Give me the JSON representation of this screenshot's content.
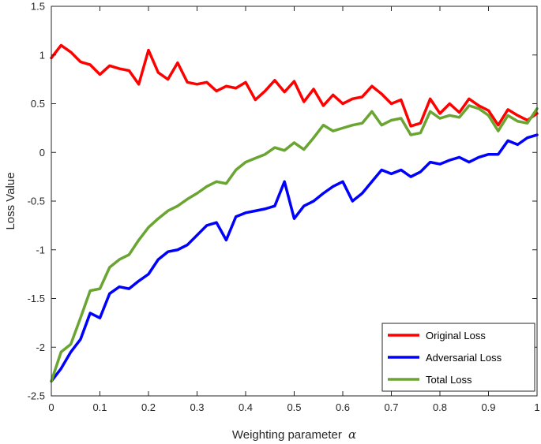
{
  "chart_data": {
    "type": "line",
    "title": "",
    "xlabel": "Weighting parameter",
    "xlabel_symbol": "α",
    "ylabel": "Loss Value",
    "xlim": [
      0,
      1
    ],
    "ylim": [
      -2.5,
      1.5
    ],
    "x_ticks": [
      0,
      0.1,
      0.2,
      0.3,
      0.4,
      0.5,
      0.6,
      0.7,
      0.8,
      0.9,
      1
    ],
    "x_tick_labels": [
      "0",
      "0.1",
      "0.2",
      "0.3",
      "0.4",
      "0.5",
      "0.6",
      "0.7",
      "0.8",
      "0.9",
      "1"
    ],
    "y_ticks": [
      -2.5,
      -2,
      -1.5,
      -1,
      -0.5,
      0,
      0.5,
      1,
      1.5
    ],
    "y_tick_labels": [
      "-2.5",
      "-2",
      "-1.5",
      "-1",
      "-0.5",
      "0",
      "0.5",
      "1",
      "1.5"
    ],
    "grid": false,
    "legend_position": "bottom-right",
    "x": [
      0,
      0.02,
      0.04,
      0.06,
      0.08,
      0.1,
      0.12,
      0.14,
      0.16,
      0.18,
      0.2,
      0.22,
      0.24,
      0.26,
      0.28,
      0.3,
      0.32,
      0.34,
      0.36,
      0.38,
      0.4,
      0.42,
      0.44,
      0.46,
      0.48,
      0.5,
      0.52,
      0.54,
      0.56,
      0.58,
      0.6,
      0.62,
      0.64,
      0.66,
      0.68,
      0.7,
      0.72,
      0.74,
      0.76,
      0.78,
      0.8,
      0.82,
      0.84,
      0.86,
      0.88,
      0.9,
      0.92,
      0.94,
      0.96,
      0.98,
      1.0
    ],
    "series": [
      {
        "name": "Original Loss",
        "color": "#ff0000",
        "values": [
          0.97,
          1.1,
          1.03,
          0.93,
          0.9,
          0.8,
          0.89,
          0.86,
          0.84,
          0.7,
          1.05,
          0.82,
          0.75,
          0.92,
          0.72,
          0.7,
          0.72,
          0.63,
          0.68,
          0.66,
          0.72,
          0.54,
          0.63,
          0.74,
          0.62,
          0.73,
          0.52,
          0.65,
          0.48,
          0.59,
          0.5,
          0.55,
          0.57,
          0.68,
          0.6,
          0.5,
          0.54,
          0.27,
          0.3,
          0.55,
          0.4,
          0.5,
          0.41,
          0.55,
          0.48,
          0.43,
          0.28,
          0.44,
          0.38,
          0.33,
          0.4
        ]
      },
      {
        "name": "Adversarial Loss",
        "color": "#0000ff",
        "values": [
          -2.35,
          -2.22,
          -2.05,
          -1.92,
          -1.65,
          -1.7,
          -1.45,
          -1.38,
          -1.4,
          -1.32,
          -1.25,
          -1.1,
          -1.02,
          -1.0,
          -0.95,
          -0.85,
          -0.75,
          -0.72,
          -0.9,
          -0.66,
          -0.62,
          -0.6,
          -0.58,
          -0.55,
          -0.3,
          -0.68,
          -0.55,
          -0.5,
          -0.42,
          -0.35,
          -0.3,
          -0.5,
          -0.42,
          -0.3,
          -0.18,
          -0.22,
          -0.18,
          -0.25,
          -0.2,
          -0.1,
          -0.12,
          -0.08,
          -0.05,
          -0.1,
          -0.05,
          -0.02,
          -0.02,
          0.12,
          0.08,
          0.15,
          0.18
        ]
      },
      {
        "name": "Total Loss",
        "color": "#6aa532",
        "values": [
          -2.35,
          -2.05,
          -1.97,
          -1.7,
          -1.42,
          -1.4,
          -1.18,
          -1.1,
          -1.05,
          -0.9,
          -0.77,
          -0.68,
          -0.6,
          -0.55,
          -0.48,
          -0.42,
          -0.35,
          -0.3,
          -0.32,
          -0.18,
          -0.1,
          -0.06,
          -0.02,
          0.05,
          0.02,
          0.1,
          0.03,
          0.15,
          0.28,
          0.22,
          0.25,
          0.28,
          0.3,
          0.42,
          0.28,
          0.33,
          0.35,
          0.18,
          0.2,
          0.42,
          0.35,
          0.38,
          0.36,
          0.48,
          0.45,
          0.38,
          0.22,
          0.38,
          0.32,
          0.3,
          0.45
        ]
      }
    ]
  }
}
